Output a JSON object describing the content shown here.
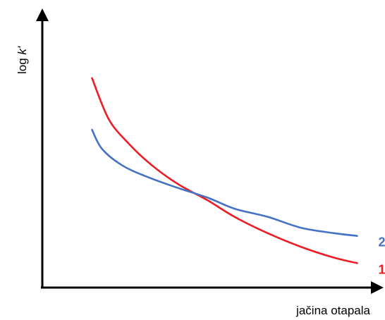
{
  "chart_data": {
    "type": "line",
    "title": "",
    "xlabel": "jačina otapala",
    "ylabel_main": "log ",
    "ylabel_italic": "k'",
    "ticks": "none",
    "grid": false,
    "legend": "inline labels at curve ends",
    "xlim": [
      0,
      1
    ],
    "ylim": [
      0,
      1
    ],
    "series": [
      {
        "label": "1",
        "color": "#ee1c24",
        "x": [
          0.15,
          0.2,
          0.26,
          0.33,
          0.41,
          0.5,
          0.58,
          0.68,
          0.78,
          0.88,
          0.95
        ],
        "y": [
          0.77,
          0.62,
          0.53,
          0.45,
          0.38,
          0.32,
          0.26,
          0.2,
          0.15,
          0.11,
          0.09
        ]
      },
      {
        "label": "2",
        "color": "#4472c4",
        "x": [
          0.15,
          0.18,
          0.24,
          0.31,
          0.4,
          0.5,
          0.58,
          0.68,
          0.78,
          0.88,
          0.95
        ],
        "y": [
          0.58,
          0.51,
          0.45,
          0.41,
          0.37,
          0.33,
          0.29,
          0.26,
          0.22,
          0.2,
          0.19
        ]
      }
    ]
  }
}
